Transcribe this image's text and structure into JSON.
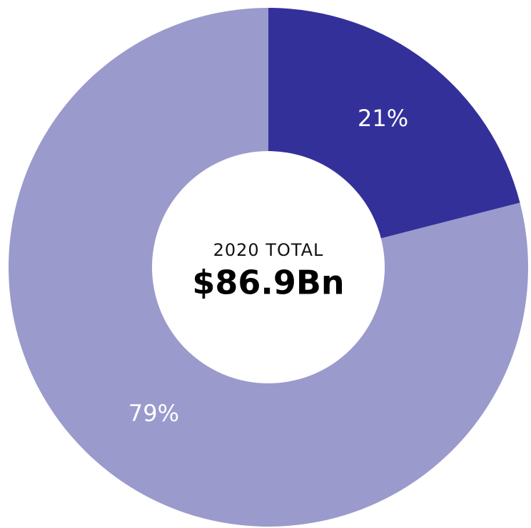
{
  "chart_data": {
    "type": "donut",
    "values": [
      21,
      79
    ],
    "value_labels": [
      "21%",
      "79%"
    ],
    "colors": [
      "#34309a",
      "#9a9acd"
    ],
    "center_label": "2020 TOTAL",
    "center_value": "$86.9Bn"
  }
}
